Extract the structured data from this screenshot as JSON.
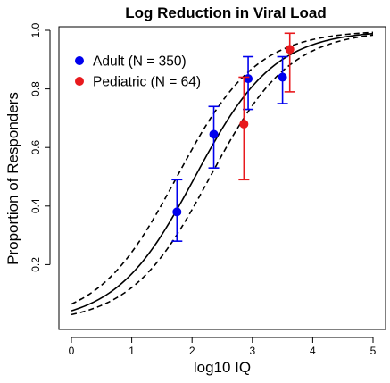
{
  "chart_data": {
    "type": "scatter",
    "title": "Log Reduction in Viral Load",
    "xlabel": "log10 IQ",
    "ylabel": "Proportion of Responders",
    "xlim": [
      0,
      5
    ],
    "ylim": [
      0,
      1
    ],
    "x_ticks": [
      "0",
      "1",
      "2",
      "3",
      "4",
      "5"
    ],
    "y_ticks": [
      "0.2",
      "0.4",
      "0.6",
      "0.8",
      "1.0"
    ],
    "legend_position": "top-left",
    "series": [
      {
        "name": "Adult (N = 350)",
        "color": "#0000ee",
        "points": [
          {
            "x": 1.75,
            "y": 0.38,
            "lo": 0.28,
            "hi": 0.49
          },
          {
            "x": 2.36,
            "y": 0.645,
            "lo": 0.53,
            "hi": 0.74
          },
          {
            "x": 2.93,
            "y": 0.835,
            "lo": 0.73,
            "hi": 0.91
          },
          {
            "x": 3.5,
            "y": 0.84,
            "lo": 0.75,
            "hi": 0.91
          }
        ]
      },
      {
        "name": "Pediatric (N = 64)",
        "color": "#e8191d",
        "points": [
          {
            "x": 2.86,
            "y": 0.68,
            "lo": 0.49,
            "hi": 0.84
          },
          {
            "x": 3.62,
            "y": 0.935,
            "lo": 0.79,
            "hi": 0.99
          }
        ]
      }
    ],
    "fit_curve": {
      "type": "logistic",
      "midpoint": 2.05,
      "slope": 1.52,
      "lower_midpoint": 2.3,
      "upper_midpoint": 1.75,
      "style": "solid fit with dashed confidence band"
    }
  }
}
